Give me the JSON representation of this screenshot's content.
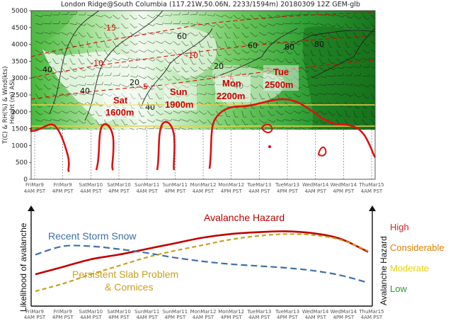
{
  "chart_data": [
    {
      "type": "heatmap",
      "title": "London Ridge@South Columbia (117.21W,50.06N, 2233/1594m)  20180309  12Z  GEM-glb",
      "ylabel_line1": "T(C) & RH(%) & Wind(kts)",
      "ylabel_line2": "Height (m) ASL",
      "y_ticks": [
        "5000",
        "4500",
        "4000",
        "3500",
        "3000",
        "2500",
        "2000",
        "1500",
        "1000",
        "500",
        "0"
      ],
      "ylim": [
        0,
        5000
      ],
      "time_ticks": [
        {
          "day": "FriMar9",
          "time": "4AM PST"
        },
        {
          "day": "FriMar9",
          "time": "4PM PST"
        },
        {
          "day": "SatMar10",
          "time": "4AM PST"
        },
        {
          "day": "SatMar10",
          "time": "4PM PST"
        },
        {
          "day": "SunMar11",
          "time": "4AM PST"
        },
        {
          "day": "SunMar11",
          "time": "4PM PST"
        },
        {
          "day": "MonMar12",
          "time": "4AM PST"
        },
        {
          "day": "MonMar12",
          "time": "4PM PST"
        },
        {
          "day": "TueMar13",
          "time": "4AM PST"
        },
        {
          "day": "TueMar13",
          "time": "4PM PST"
        },
        {
          "day": "WedMar14",
          "time": "4AM PST"
        },
        {
          "day": "WedMar14",
          "time": "4PM PST"
        },
        {
          "day": "ThuMar15",
          "time": "4AM PST"
        }
      ],
      "contour_labels_black": [
        "40",
        "40",
        "20",
        "20",
        "40",
        "60",
        "80",
        "80",
        "60",
        "40"
      ],
      "contour_labels_red": [
        "-15",
        "-10",
        "-10",
        "-5",
        "-5",
        "-5"
      ],
      "freezing_level_annotations": [
        {
          "day": "Sat",
          "height": "1600m"
        },
        {
          "day": "Sun",
          "height": "1900m"
        },
        {
          "day": "Mon",
          "height": "2200m"
        },
        {
          "day": "Tue",
          "height": "2500m"
        }
      ],
      "legend": "none"
    },
    {
      "type": "line",
      "ylabel_left": "Likelihood of avalanche",
      "ylabel_right": "Avalanche Hazard",
      "hazard_levels": [
        {
          "label": "High",
          "color": "#e02020"
        },
        {
          "label": "Considerable",
          "color": "#e08000"
        },
        {
          "label": "Moderate",
          "color": "#e8d400"
        },
        {
          "label": "Low",
          "color": "#2a9a2a"
        }
      ],
      "series": [
        {
          "name": "Avalanche Hazard",
          "color": "#c00000",
          "style": "solid",
          "values": [
            0.34,
            0.42,
            0.5,
            0.55,
            0.61,
            0.67,
            0.73,
            0.77,
            0.79,
            0.8,
            0.78,
            0.72,
            0.58
          ]
        },
        {
          "name": "Recent Storm Snow",
          "color": "#3d6fa8",
          "style": "dashed",
          "values": [
            0.55,
            0.64,
            0.64,
            0.61,
            0.57,
            0.52,
            0.48,
            0.45,
            0.43,
            0.41,
            0.38,
            0.33,
            0.25
          ]
        },
        {
          "name": "Persistent Slab Problem & Cornices",
          "color": "#c8a020",
          "style": "dashed",
          "values": [
            0.16,
            0.24,
            0.34,
            0.43,
            0.52,
            0.59,
            0.65,
            0.71,
            0.75,
            0.77,
            0.76,
            0.71,
            0.59
          ]
        }
      ],
      "series_label_line2": "& Cornices",
      "ylim": [
        0,
        1
      ]
    }
  ]
}
